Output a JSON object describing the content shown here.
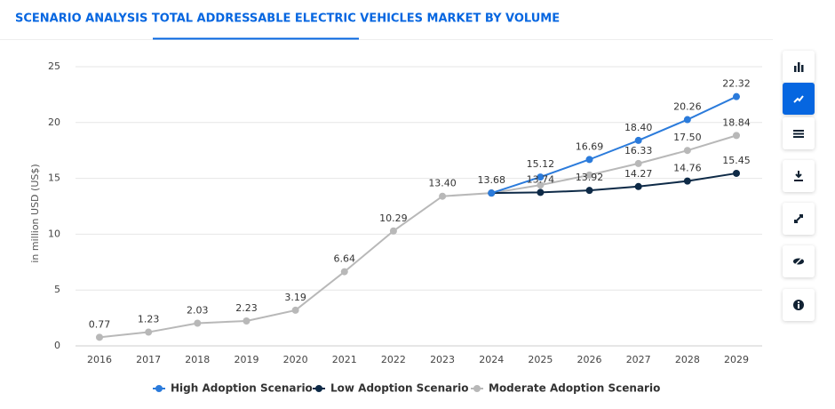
{
  "chart_data": {
    "type": "line",
    "title": "SCENARIO ANALYSIS TOTAL ADDRESSABLE ELECTRIC VEHICLES MARKET BY VOLUME",
    "y_label": "in million USD (US$)",
    "categories": [
      "2016",
      "2017",
      "2018",
      "2019",
      "2020",
      "2021",
      "2022",
      "2023",
      "2024",
      "2025",
      "2026",
      "2027",
      "2028",
      "2029"
    ],
    "ylim": [
      0,
      25
    ],
    "yticks": [
      0,
      5,
      10,
      15,
      20,
      25
    ],
    "grid": true,
    "legend": "bottom",
    "series": [
      {
        "name": "High Adoption Scenario",
        "color": "#2b7bdb",
        "values": [
          null,
          null,
          null,
          null,
          null,
          null,
          null,
          null,
          13.68,
          15.12,
          16.69,
          18.4,
          20.26,
          22.32
        ],
        "value_labels": [
          null,
          null,
          null,
          null,
          null,
          null,
          null,
          null,
          null,
          "15.12",
          "16.69",
          "18.40",
          "20.26",
          "22.32"
        ]
      },
      {
        "name": "Low Adoption Scenario",
        "color": "#0e2a47",
        "values": [
          null,
          null,
          null,
          null,
          null,
          null,
          null,
          null,
          13.68,
          13.74,
          13.92,
          14.27,
          14.76,
          15.45
        ],
        "value_labels": [
          null,
          null,
          null,
          null,
          null,
          null,
          null,
          null,
          null,
          "13.74",
          "13.92",
          "14.27",
          "14.76",
          "15.45"
        ]
      },
      {
        "name": "Moderate Adoption Scenario",
        "color": "#b8b8b8",
        "values": [
          0.77,
          1.23,
          2.03,
          2.23,
          3.19,
          6.64,
          10.29,
          13.4,
          13.68,
          14.4,
          15.3,
          16.33,
          17.5,
          18.84
        ],
        "value_labels": [
          "0.77",
          "1.23",
          "2.03",
          "2.23",
          "3.19",
          "6.64",
          "10.29",
          "13.40",
          "13.68",
          null,
          null,
          "16.33",
          "17.50",
          "18.84"
        ]
      }
    ]
  }
}
